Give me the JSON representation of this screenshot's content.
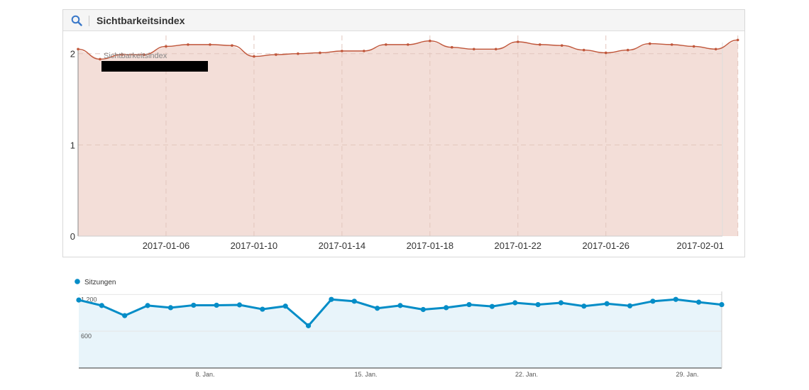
{
  "panel": {
    "title": "Sichtbarkeitsindex",
    "search_icon": "search-icon"
  },
  "colors": {
    "visibility_line": "#c0563a",
    "visibility_fill": "#f3ded8",
    "sessions_line": "#058dc7",
    "sessions_fill": "#e8f4fa"
  },
  "chart_data": [
    {
      "type": "area",
      "legend": "Sichtbarkeitsindex",
      "y_ticks": [
        "0",
        "1",
        "2"
      ],
      "ylim": [
        0,
        2.2
      ],
      "x_tick_labels": [
        "2017-01-06",
        "2017-01-10",
        "2017-01-14",
        "2017-01-18",
        "2017-01-22",
        "2017-01-26",
        "2017-02-01"
      ],
      "x_tick_days": [
        4,
        8,
        12,
        16,
        20,
        24,
        30
      ],
      "x_range_days": [
        0,
        29.3
      ],
      "grid": true,
      "series": [
        {
          "name": "Sichtbarkeitsindex",
          "x": [
            "2017-01-02",
            "2017-01-03",
            "2017-01-04",
            "2017-01-05",
            "2017-01-06",
            "2017-01-07",
            "2017-01-08",
            "2017-01-09",
            "2017-01-10",
            "2017-01-11",
            "2017-01-12",
            "2017-01-13",
            "2017-01-14",
            "2017-01-15",
            "2017-01-16",
            "2017-01-17",
            "2017-01-18",
            "2017-01-19",
            "2017-01-20",
            "2017-01-21",
            "2017-01-22",
            "2017-01-23",
            "2017-01-24",
            "2017-01-25",
            "2017-01-26",
            "2017-01-27",
            "2017-01-28",
            "2017-01-29",
            "2017-01-30",
            "2017-01-31",
            "2017-02-01"
          ],
          "values": [
            2.05,
            1.94,
            1.99,
            1.99,
            2.08,
            2.1,
            2.1,
            2.09,
            1.97,
            1.99,
            2.0,
            2.01,
            2.03,
            2.03,
            2.1,
            2.1,
            2.14,
            2.07,
            2.05,
            2.05,
            2.13,
            2.1,
            2.09,
            2.04,
            2.01,
            2.04,
            2.11,
            2.1,
            2.08,
            2.05,
            2.15
          ]
        }
      ]
    },
    {
      "type": "line",
      "legend": "Sitzungen",
      "y_ticks": [
        "600",
        "1.200"
      ],
      "ylim": [
        0,
        1250
      ],
      "x_tick_labels": [
        "8. Jan.",
        "15. Jan.",
        "22. Jan.",
        "29. Jan."
      ],
      "x_tick_days": [
        5.5,
        12.5,
        19.5,
        26.5
      ],
      "x_range_days": [
        0,
        28
      ],
      "grid": true,
      "series": [
        {
          "name": "Sitzungen",
          "x": [
            "2017-01-02",
            "2017-01-03",
            "2017-01-04",
            "2017-01-05",
            "2017-01-06",
            "2017-01-07",
            "2017-01-08",
            "2017-01-09",
            "2017-01-10",
            "2017-01-11",
            "2017-01-12",
            "2017-01-13",
            "2017-01-14",
            "2017-01-15",
            "2017-01-16",
            "2017-01-17",
            "2017-01-18",
            "2017-01-19",
            "2017-01-20",
            "2017-01-21",
            "2017-01-22",
            "2017-01-23",
            "2017-01-24",
            "2017-01-25",
            "2017-01-26",
            "2017-01-27",
            "2017-01-28",
            "2017-01-29",
            "2017-01-30"
          ],
          "values": [
            1110,
            1020,
            855,
            1020,
            985,
            1025,
            1025,
            1030,
            960,
            1010,
            690,
            1120,
            1090,
            975,
            1020,
            955,
            985,
            1035,
            1005,
            1065,
            1035,
            1065,
            1010,
            1050,
            1015,
            1090,
            1120,
            1075,
            1035
          ]
        }
      ]
    }
  ]
}
